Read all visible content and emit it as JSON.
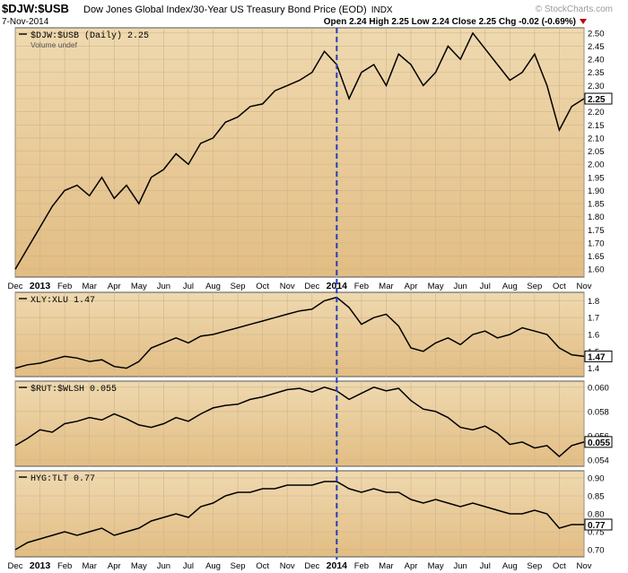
{
  "header": {
    "symbol": "$DJW:$USB",
    "description": "Dow Jones Global Index/30-Year US Treasury Bond Price (EOD)",
    "exchange": "INDX",
    "date": "7-Nov-2014",
    "ohlc": "Open 2.24  High 2.25  Low 2.24  Close 2.25  Chg -0.02 (-0.69%)",
    "watermark": "© StockCharts.com"
  },
  "colors": {
    "panel_top": "#efd9b0",
    "panel_bottom": "#e2bd83",
    "line": "#000000",
    "marker": "#1f3fb5",
    "down_arrow": "#c00000"
  },
  "x_labels": [
    "Dec",
    "2013",
    "Feb",
    "Mar",
    "Apr",
    "May",
    "Jun",
    "Jul",
    "Aug",
    "Sep",
    "Oct",
    "Nov",
    "Dec",
    "2014",
    "Feb",
    "Mar",
    "Apr",
    "May",
    "Jun",
    "Jul",
    "Aug",
    "Sep",
    "Oct",
    "Nov"
  ],
  "chart_data": [
    {
      "type": "line",
      "name": "$DJW:$USB (Daily) 2.25",
      "sub_label": "Volume undef",
      "ylim": [
        1.57,
        2.52
      ],
      "y_ticks": [
        "1.60",
        "1.65",
        "1.70",
        "1.75",
        "1.80",
        "1.85",
        "1.90",
        "1.95",
        "2.00",
        "2.05",
        "2.10",
        "2.15",
        "2.20",
        "2.25",
        "2.30",
        "2.35",
        "2.40",
        "2.45",
        "2.50"
      ],
      "last_value": "2.25",
      "x": [
        0,
        0.5,
        1,
        1.5,
        2,
        2.5,
        3,
        3.5,
        4,
        4.5,
        5,
        5.5,
        6,
        6.5,
        7,
        7.5,
        8,
        8.5,
        9,
        9.5,
        10,
        10.5,
        11,
        11.5,
        12,
        12.5,
        13,
        13.5,
        14,
        14.5,
        15,
        15.5,
        16,
        16.5,
        17,
        17.5,
        18,
        18.5,
        19,
        19.5,
        20,
        20.5,
        21,
        21.5,
        22,
        22.5,
        23
      ],
      "values": [
        1.6,
        1.68,
        1.76,
        1.84,
        1.9,
        1.92,
        1.88,
        1.95,
        1.87,
        1.92,
        1.85,
        1.95,
        1.98,
        2.04,
        2.0,
        2.08,
        2.1,
        2.16,
        2.18,
        2.22,
        2.23,
        2.28,
        2.3,
        2.32,
        2.35,
        2.43,
        2.38,
        2.25,
        2.35,
        2.38,
        2.3,
        2.42,
        2.38,
        2.3,
        2.35,
        2.45,
        2.4,
        2.5,
        2.44,
        2.38,
        2.32,
        2.35,
        2.42,
        2.3,
        2.13,
        2.22,
        2.25
      ]
    },
    {
      "type": "line",
      "name": "XLY:XLU 1.47",
      "ylim": [
        1.35,
        1.85
      ],
      "y_ticks": [
        "1.4",
        "1.5",
        "1.6",
        "1.7",
        "1.8"
      ],
      "last_value": "1.47",
      "x": [
        0,
        0.5,
        1,
        1.5,
        2,
        2.5,
        3,
        3.5,
        4,
        4.5,
        5,
        5.5,
        6,
        6.5,
        7,
        7.5,
        8,
        8.5,
        9,
        9.5,
        10,
        10.5,
        11,
        11.5,
        12,
        12.5,
        13,
        13.5,
        14,
        14.5,
        15,
        15.5,
        16,
        16.5,
        17,
        17.5,
        18,
        18.5,
        19,
        19.5,
        20,
        20.5,
        21,
        21.5,
        22,
        22.5,
        23
      ],
      "values": [
        1.4,
        1.42,
        1.43,
        1.45,
        1.47,
        1.46,
        1.44,
        1.45,
        1.41,
        1.4,
        1.44,
        1.52,
        1.55,
        1.58,
        1.55,
        1.59,
        1.6,
        1.62,
        1.64,
        1.66,
        1.68,
        1.7,
        1.72,
        1.74,
        1.75,
        1.8,
        1.82,
        1.76,
        1.66,
        1.7,
        1.72,
        1.65,
        1.52,
        1.5,
        1.55,
        1.58,
        1.54,
        1.6,
        1.62,
        1.58,
        1.6,
        1.64,
        1.62,
        1.6,
        1.52,
        1.48,
        1.47
      ]
    },
    {
      "type": "line",
      "name": "$RUT:$WLSH 0.055",
      "ylim": [
        0.0535,
        0.0605
      ],
      "y_ticks": [
        "0.054",
        "0.056",
        "0.058",
        "0.060"
      ],
      "last_value": "0.055",
      "x": [
        0,
        0.5,
        1,
        1.5,
        2,
        2.5,
        3,
        3.5,
        4,
        4.5,
        5,
        5.5,
        6,
        6.5,
        7,
        7.5,
        8,
        8.5,
        9,
        9.5,
        10,
        10.5,
        11,
        11.5,
        12,
        12.5,
        13,
        13.5,
        14,
        14.5,
        15,
        15.5,
        16,
        16.5,
        17,
        17.5,
        18,
        18.5,
        19,
        19.5,
        20,
        20.5,
        21,
        21.5,
        22,
        22.5,
        23
      ],
      "values": [
        0.0552,
        0.0558,
        0.0565,
        0.0563,
        0.057,
        0.0572,
        0.0575,
        0.0573,
        0.0578,
        0.0574,
        0.0569,
        0.0567,
        0.057,
        0.0575,
        0.0572,
        0.0578,
        0.0583,
        0.0585,
        0.0586,
        0.059,
        0.0592,
        0.0595,
        0.0598,
        0.0599,
        0.0596,
        0.06,
        0.0597,
        0.059,
        0.0595,
        0.06,
        0.0597,
        0.0599,
        0.0589,
        0.0582,
        0.058,
        0.0575,
        0.0567,
        0.0565,
        0.0568,
        0.0562,
        0.0553,
        0.0555,
        0.055,
        0.0552,
        0.0543,
        0.0552,
        0.0555
      ]
    },
    {
      "type": "line",
      "name": "HYG:TLT 0.77",
      "ylim": [
        0.68,
        0.92
      ],
      "y_ticks": [
        "0.70",
        "0.75",
        "0.80",
        "0.85",
        "0.90"
      ],
      "last_value": "0.77",
      "x": [
        0,
        0.5,
        1,
        1.5,
        2,
        2.5,
        3,
        3.5,
        4,
        4.5,
        5,
        5.5,
        6,
        6.5,
        7,
        7.5,
        8,
        8.5,
        9,
        9.5,
        10,
        10.5,
        11,
        11.5,
        12,
        12.5,
        13,
        13.5,
        14,
        14.5,
        15,
        15.5,
        16,
        16.5,
        17,
        17.5,
        18,
        18.5,
        19,
        19.5,
        20,
        20.5,
        21,
        21.5,
        22,
        22.5,
        23
      ],
      "values": [
        0.7,
        0.72,
        0.73,
        0.74,
        0.75,
        0.74,
        0.75,
        0.76,
        0.74,
        0.75,
        0.76,
        0.78,
        0.79,
        0.8,
        0.79,
        0.82,
        0.83,
        0.85,
        0.86,
        0.86,
        0.87,
        0.87,
        0.88,
        0.88,
        0.88,
        0.89,
        0.89,
        0.87,
        0.86,
        0.87,
        0.86,
        0.86,
        0.84,
        0.83,
        0.84,
        0.83,
        0.82,
        0.83,
        0.82,
        0.81,
        0.8,
        0.8,
        0.81,
        0.8,
        0.76,
        0.77,
        0.77
      ]
    }
  ]
}
